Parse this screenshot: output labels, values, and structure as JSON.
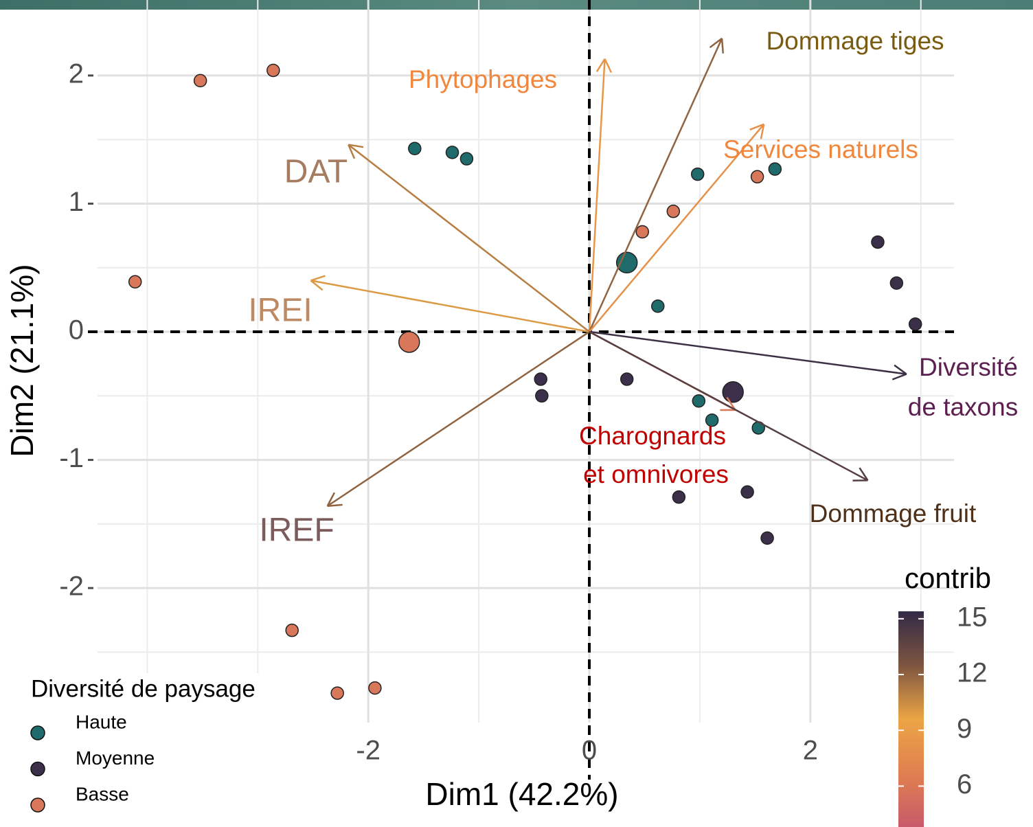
{
  "chart_data": {
    "type": "biplot",
    "x_label": "Dim1 (42.2%)",
    "y_label": "Dim2 (21.1%)",
    "xlim": [
      -4.45,
      3.3
    ],
    "ylim": [
      -3.05,
      2.6
    ],
    "xticks": [
      -2,
      0,
      2
    ],
    "yticks": [
      -2,
      -1,
      0,
      1,
      2
    ],
    "xgrid": [
      -4,
      -3,
      -1,
      1,
      3
    ],
    "ygrid": [
      -2.5,
      -1.5,
      -0.5,
      0.5,
      1.5
    ],
    "legend_title": "Diversité de paysage",
    "series": [
      {
        "name": "Haute",
        "color": "#1f6b6b",
        "x": [
          -1.58,
          -1.24,
          -1.11,
          0.98,
          1.68,
          0.34,
          0.62,
          0.99,
          1.11,
          1.53
        ],
        "y": [
          1.43,
          1.4,
          1.35,
          1.23,
          1.27,
          0.54,
          0.2,
          -0.54,
          -0.69,
          -0.75
        ],
        "sizes": [
          1,
          1,
          1,
          1,
          1,
          2,
          1,
          1,
          1,
          1
        ]
      },
      {
        "name": "Moyenne",
        "color": "#3b2f4a",
        "x": [
          2.61,
          2.78,
          2.95,
          -0.44,
          -0.43,
          0.34,
          1.3,
          0.81,
          1.43,
          1.61
        ],
        "y": [
          0.7,
          0.38,
          0.06,
          -0.37,
          -0.5,
          -0.37,
          -0.47,
          -1.29,
          -1.25,
          -1.61
        ],
        "sizes": [
          1,
          1,
          1,
          1,
          1,
          1,
          2,
          1,
          1,
          1
        ]
      },
      {
        "name": "Basse",
        "color": "#d9775a",
        "x": [
          -2.86,
          -3.52,
          -4.11,
          -1.63,
          -2.69,
          -2.28,
          -1.94,
          0.48,
          0.76,
          1.52
        ],
        "y": [
          2.04,
          1.96,
          0.39,
          -0.08,
          -2.33,
          -2.82,
          -2.78,
          0.78,
          0.94,
          1.21
        ],
        "sizes": [
          1,
          1,
          1,
          2,
          1,
          1,
          1,
          1,
          1,
          1
        ]
      }
    ],
    "variables": [
      {
        "label": [
          "Phytophages"
        ],
        "x": 0.14,
        "y": 2.13,
        "contrib": 8.5,
        "label_color": "#f0873c"
      },
      {
        "label": [
          "Dommage tiges"
        ],
        "x": 1.2,
        "y": 2.29,
        "contrib": 12,
        "label_color": "#7a5c10"
      },
      {
        "label": [
          "Services naturels"
        ],
        "x": 1.58,
        "y": 1.62,
        "contrib": 8,
        "label_color": "#f0873c"
      },
      {
        "label": [
          "DAT"
        ],
        "x": -2.18,
        "y": 1.46,
        "contrib": 11,
        "label_color": "#a57c62"
      },
      {
        "label": [
          "IREI"
        ],
        "x": -2.52,
        "y": 0.4,
        "contrib": 10,
        "label_color": "#bd8a64"
      },
      {
        "label": [
          "IREF"
        ],
        "x": -2.37,
        "y": -1.36,
        "contrib": 12,
        "label_color": "#7b5b5b"
      },
      {
        "label": [
          "Diversité",
          "de taxons"
        ],
        "x": 2.87,
        "y": -0.33,
        "contrib": 15,
        "label_color": "#5c1f4f"
      },
      {
        "label": [
          "Charognards",
          "et omnivores"
        ],
        "x": 1.32,
        "y": -0.61,
        "contrib": 6,
        "label_color": "#c00000"
      },
      {
        "label": [
          "Dommage fruit"
        ],
        "x": 2.52,
        "y": -1.16,
        "contrib": 14,
        "label_color": "#4f3018"
      }
    ],
    "colorbar": {
      "title": "contrib",
      "lim": [
        3.8,
        15.4
      ],
      "ticks": [
        6,
        9,
        12,
        15
      ],
      "colors": [
        "#c85a6a",
        "#e08050",
        "#eba545",
        "#7d5540",
        "#322a45"
      ]
    }
  }
}
